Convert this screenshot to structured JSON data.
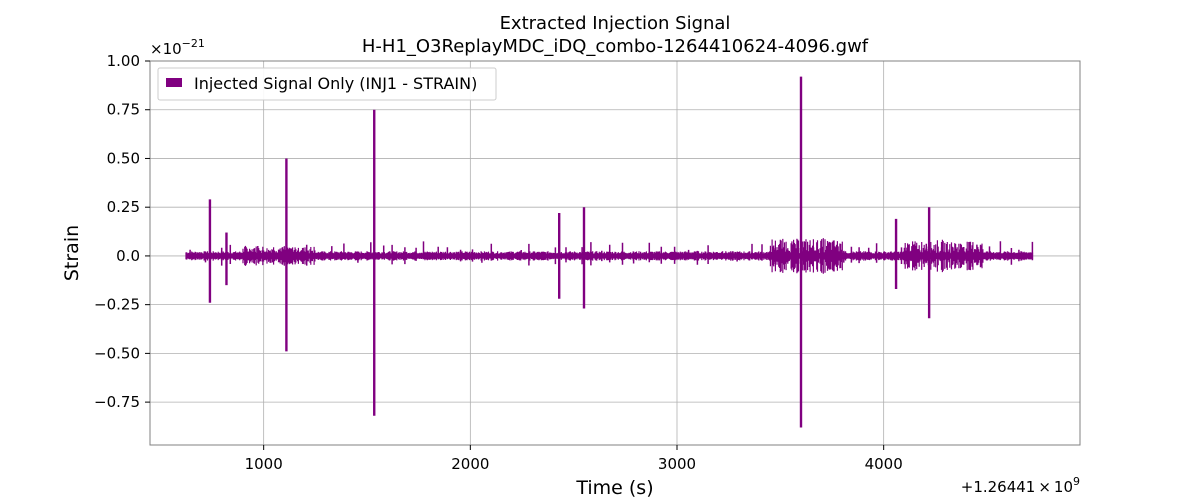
{
  "chart_data": {
    "type": "line",
    "title": "Extracted Injection Signal",
    "subtitle": "H-H1_O3ReplayMDC_iDQ_combo-1264410624-4096.gwf",
    "xlabel": "Time (s)",
    "ylabel": "Strain",
    "y_scale_label": "×10",
    "y_scale_exponent": "−21",
    "x_offset_label": "+1.26441 × 10",
    "x_offset_exponent": "9",
    "xlim": [
      450,
      4950
    ],
    "ylim": [
      -0.97,
      1.0
    ],
    "x_ticks": [
      1000,
      2000,
      3000,
      4000
    ],
    "x_tick_labels": [
      "1000",
      "2000",
      "3000",
      "4000"
    ],
    "y_ticks": [
      1.0,
      0.75,
      0.5,
      0.25,
      0.0,
      -0.25,
      -0.5,
      -0.75
    ],
    "y_tick_labels": [
      "1.00",
      "0.75",
      "0.50",
      "0.25",
      "0.0",
      "−0.25",
      "−0.50",
      "−0.75"
    ],
    "grid": true,
    "legend_position": "top-left",
    "color": "#800080",
    "series": [
      {
        "name": "Injected Signal Only (INJ1 - STRAIN)",
        "x_range": [
          624,
          4720
        ],
        "spikes": [
          {
            "x": 740,
            "min": -0.24,
            "max": 0.29
          },
          {
            "x": 820,
            "min": -0.15,
            "max": 0.12
          },
          {
            "x": 1110,
            "min": -0.49,
            "max": 0.5
          },
          {
            "x": 1535,
            "min": -0.82,
            "max": 0.75
          },
          {
            "x": 2430,
            "min": -0.22,
            "max": 0.22
          },
          {
            "x": 2550,
            "min": -0.27,
            "max": 0.25
          },
          {
            "x": 3600,
            "min": -0.88,
            "max": 0.92
          },
          {
            "x": 4060,
            "min": -0.17,
            "max": 0.19
          },
          {
            "x": 4220,
            "min": -0.32,
            "max": 0.25
          }
        ],
        "bursts": [
          {
            "x_start": 3450,
            "x_end": 3810,
            "amp": 0.07
          },
          {
            "x_start": 4100,
            "x_end": 4480,
            "amp": 0.06
          },
          {
            "x_start": 900,
            "x_end": 1250,
            "amp": 0.03
          }
        ]
      }
    ]
  }
}
